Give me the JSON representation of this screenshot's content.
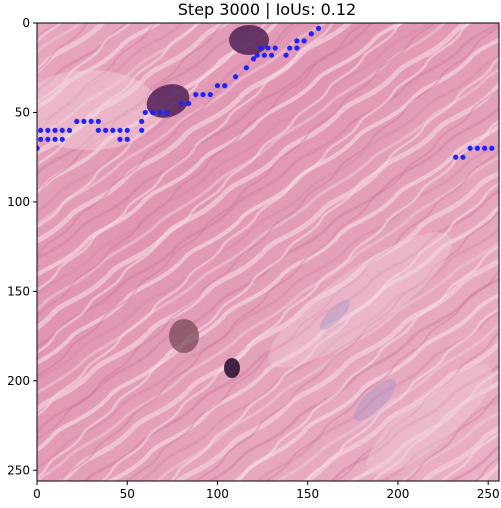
{
  "figure": {
    "title": "Step 3000 | IoUs: 0.12",
    "x_ticks": [
      "0",
      "50",
      "100",
      "150",
      "200",
      "250"
    ],
    "y_ticks": [
      "0",
      "50",
      "100",
      "150",
      "200",
      "250"
    ],
    "colors": {
      "tissue_base": "#e39fb8",
      "tissue_light": "#f1c9d8",
      "tissue_dark": "#c96a93",
      "nucleus": "#5b2a5e",
      "dot": "#1f24ff"
    }
  },
  "chart_data": {
    "type": "scatter",
    "title": "Step 3000 | IoUs: 0.12",
    "xlabel": "",
    "ylabel": "",
    "xlim": [
      0,
      256
    ],
    "ylim": [
      256,
      0
    ],
    "x_ticks": [
      0,
      50,
      100,
      150,
      200,
      250
    ],
    "y_ticks": [
      0,
      50,
      100,
      150,
      200,
      250
    ],
    "background": "histology-tissue-image",
    "series": [
      {
        "color": "#1f24ff",
        "points": [
          [
            0,
            70
          ],
          [
            2,
            65
          ],
          [
            6,
            65
          ],
          [
            10,
            65
          ],
          [
            14,
            65
          ],
          [
            2,
            60
          ],
          [
            6,
            60
          ],
          [
            10,
            60
          ],
          [
            14,
            60
          ],
          [
            18,
            60
          ],
          [
            22,
            55
          ],
          [
            26,
            55
          ],
          [
            30,
            55
          ],
          [
            34,
            55
          ],
          [
            34,
            60
          ],
          [
            38,
            60
          ],
          [
            42,
            60
          ],
          [
            46,
            60
          ],
          [
            50,
            60
          ],
          [
            46,
            65
          ],
          [
            50,
            65
          ],
          [
            58,
            60
          ],
          [
            58,
            55
          ],
          [
            60,
            50
          ],
          [
            64,
            50
          ],
          [
            68,
            50
          ],
          [
            72,
            50
          ],
          [
            80,
            45
          ],
          [
            84,
            45
          ],
          [
            88,
            40
          ],
          [
            92,
            40
          ],
          [
            96,
            40
          ],
          [
            100,
            35
          ],
          [
            104,
            35
          ],
          [
            110,
            30
          ],
          [
            116,
            25
          ],
          [
            120,
            20
          ],
          [
            122,
            18
          ],
          [
            126,
            18
          ],
          [
            130,
            18
          ],
          [
            124,
            14
          ],
          [
            128,
            14
          ],
          [
            132,
            14
          ],
          [
            138,
            18
          ],
          [
            140,
            14
          ],
          [
            144,
            14
          ],
          [
            144,
            10
          ],
          [
            148,
            10
          ],
          [
            152,
            6
          ],
          [
            156,
            3
          ],
          [
            232,
            75
          ],
          [
            236,
            75
          ],
          [
            240,
            70
          ],
          [
            244,
            70
          ],
          [
            248,
            70
          ],
          [
            252,
            70
          ]
        ]
      }
    ]
  }
}
